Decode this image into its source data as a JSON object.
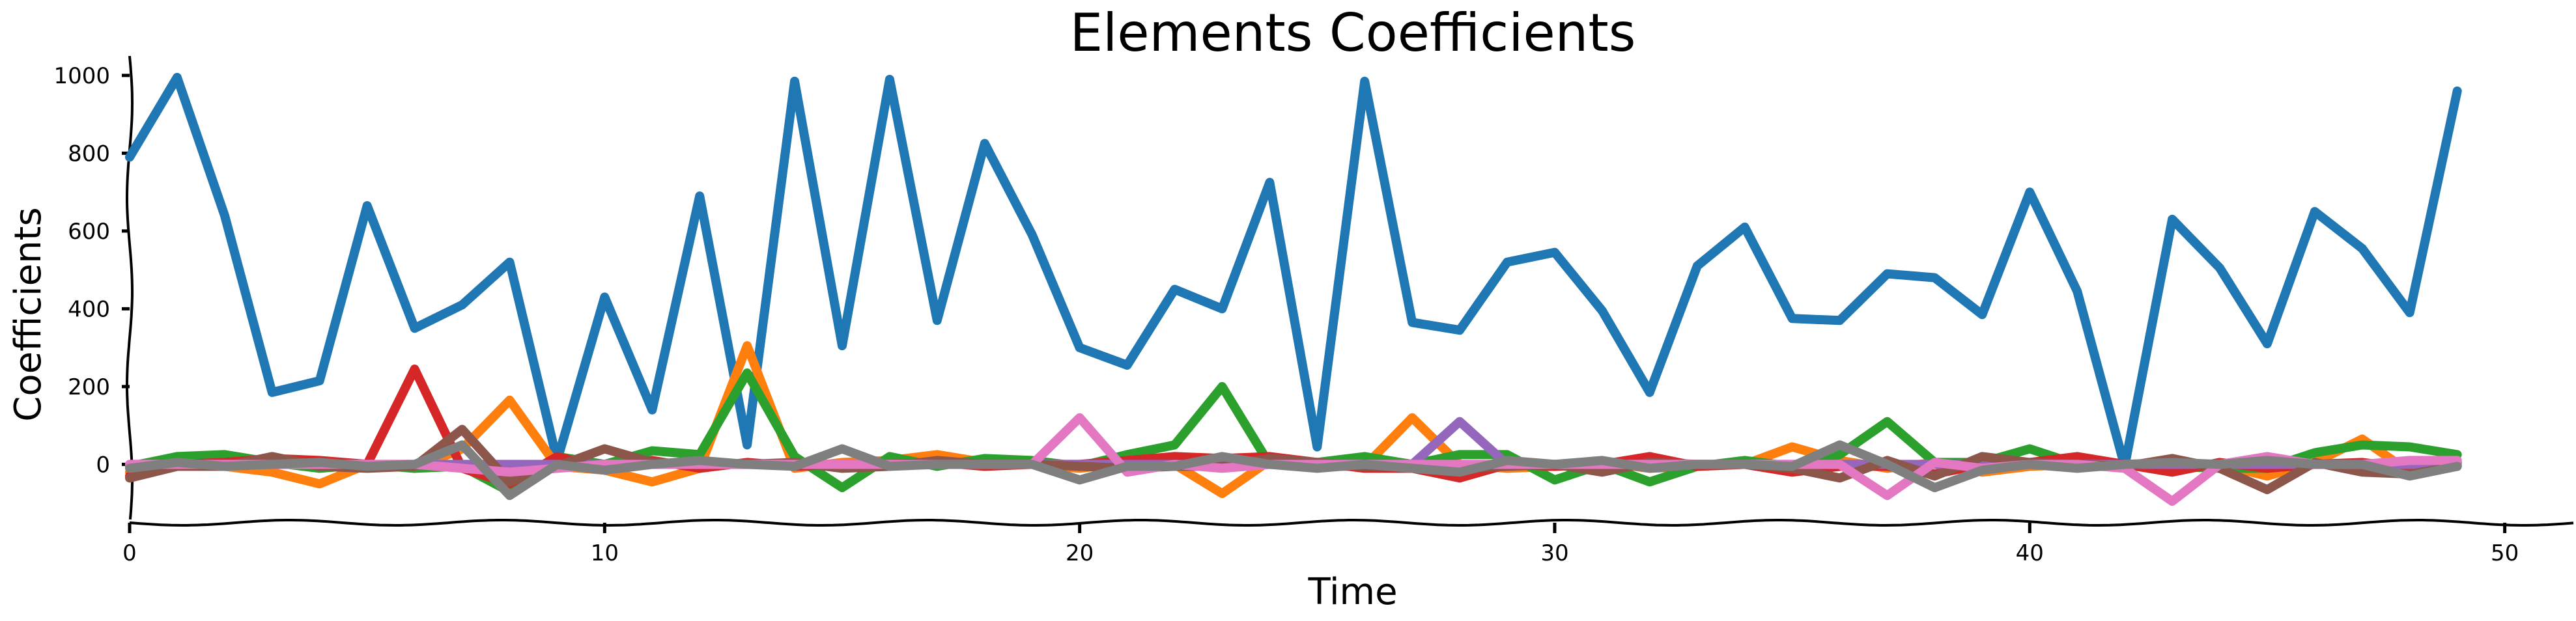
{
  "chart_data": {
    "type": "line",
    "title": "Elements Coefficients",
    "xlabel": "Time",
    "ylabel": "Coefficients",
    "xlim": [
      0,
      51.5
    ],
    "ylim": [
      -150,
      1050
    ],
    "xticks": [
      0,
      10,
      20,
      30,
      40,
      50
    ],
    "yticks": [
      0,
      200,
      400,
      600,
      800,
      1000
    ],
    "grid": false,
    "x": [
      0,
      1,
      2,
      3,
      4,
      5,
      6,
      7,
      8,
      9,
      10,
      11,
      12,
      13,
      14,
      15,
      16,
      17,
      18,
      19,
      20,
      21,
      22,
      23,
      24,
      25,
      26,
      27,
      28,
      29,
      30,
      31,
      32,
      33,
      34,
      35,
      36,
      37,
      38,
      39,
      40,
      41,
      42,
      43,
      44,
      45,
      46,
      47,
      48,
      49
    ],
    "series": [
      {
        "color": "#1f77b4",
        "values": [
          790,
          995,
          640,
          185,
          215,
          665,
          350,
          410,
          520,
          10,
          430,
          140,
          690,
          50,
          985,
          305,
          990,
          370,
          825,
          590,
          300,
          255,
          450,
          400,
          725,
          45,
          985,
          365,
          345,
          520,
          545,
          395,
          185,
          510,
          610,
          375,
          370,
          490,
          480,
          385,
          700,
          445,
          -5,
          630,
          505,
          310,
          650,
          555,
          390,
          960
        ]
      },
      {
        "color": "#ff7f0e",
        "values": [
          -20,
          10,
          -5,
          -20,
          -50,
          0,
          -10,
          40,
          165,
          -5,
          -15,
          -45,
          -10,
          305,
          -10,
          5,
          10,
          25,
          5,
          0,
          -10,
          5,
          0,
          -75,
          10,
          -5,
          -5,
          120,
          0,
          -10,
          -5,
          5,
          -10,
          -5,
          0,
          45,
          10,
          -10,
          5,
          -20,
          -5,
          0,
          0,
          -10,
          0,
          -30,
          5,
          65,
          -20,
          10
        ]
      },
      {
        "color": "#2ca02c",
        "values": [
          -5,
          20,
          25,
          5,
          -10,
          0,
          -10,
          -5,
          -70,
          20,
          0,
          35,
          25,
          235,
          20,
          -60,
          20,
          -5,
          15,
          10,
          -5,
          25,
          50,
          200,
          0,
          5,
          20,
          0,
          25,
          25,
          -40,
          0,
          -45,
          -5,
          10,
          -5,
          25,
          110,
          5,
          5,
          40,
          0,
          -5,
          -5,
          -10,
          -10,
          30,
          50,
          45,
          25
        ]
      },
      {
        "color": "#d62728",
        "values": [
          -30,
          0,
          5,
          15,
          10,
          0,
          245,
          -10,
          -50,
          20,
          -10,
          10,
          -10,
          5,
          -5,
          0,
          0,
          5,
          -5,
          0,
          0,
          10,
          20,
          15,
          20,
          5,
          -10,
          -10,
          -35,
          0,
          -5,
          0,
          20,
          -5,
          0,
          -20,
          -5,
          -5,
          -25,
          0,
          5,
          20,
          0,
          -20,
          5,
          -10,
          0,
          5,
          -10,
          5
        ]
      },
      {
        "color": "#9467bd",
        "values": [
          0,
          0,
          0,
          0,
          0,
          0,
          0,
          0,
          0,
          0,
          0,
          0,
          0,
          0,
          0,
          0,
          0,
          0,
          0,
          0,
          0,
          0,
          0,
          0,
          0,
          0,
          0,
          0,
          110,
          0,
          0,
          0,
          0,
          0,
          0,
          0,
          0,
          0,
          0,
          0,
          0,
          0,
          0,
          0,
          0,
          0,
          0,
          0,
          0,
          0
        ]
      },
      {
        "color": "#8c564b",
        "values": [
          -35,
          -5,
          -5,
          20,
          -5,
          -10,
          -5,
          90,
          -45,
          -5,
          40,
          5,
          0,
          0,
          5,
          -10,
          -5,
          10,
          0,
          0,
          -5,
          -10,
          -5,
          -5,
          15,
          5,
          -5,
          -5,
          -10,
          -5,
          0,
          -20,
          5,
          0,
          0,
          -10,
          -35,
          10,
          -30,
          20,
          5,
          0,
          -5,
          15,
          -10,
          -65,
          5,
          -20,
          -25,
          -5
        ]
      },
      {
        "color": "#e377c2",
        "values": [
          0,
          0,
          0,
          0,
          0,
          0,
          0,
          -10,
          -20,
          -10,
          0,
          0,
          0,
          0,
          0,
          0,
          0,
          0,
          0,
          0,
          120,
          -20,
          0,
          -10,
          0,
          0,
          0,
          0,
          0,
          0,
          0,
          0,
          0,
          0,
          0,
          0,
          0,
          -80,
          5,
          -10,
          0,
          0,
          -10,
          -95,
          0,
          20,
          0,
          0,
          10,
          10
        ]
      },
      {
        "color": "#7f7f7f",
        "values": [
          -10,
          5,
          -5,
          0,
          5,
          -5,
          0,
          50,
          -80,
          0,
          -15,
          0,
          10,
          0,
          -5,
          40,
          -5,
          0,
          0,
          0,
          -40,
          -5,
          -5,
          20,
          0,
          -10,
          0,
          -10,
          -20,
          10,
          0,
          10,
          -10,
          0,
          0,
          -5,
          50,
          0,
          -60,
          -15,
          0,
          -10,
          0,
          5,
          0,
          10,
          0,
          0,
          -30,
          -5
        ]
      }
    ]
  }
}
